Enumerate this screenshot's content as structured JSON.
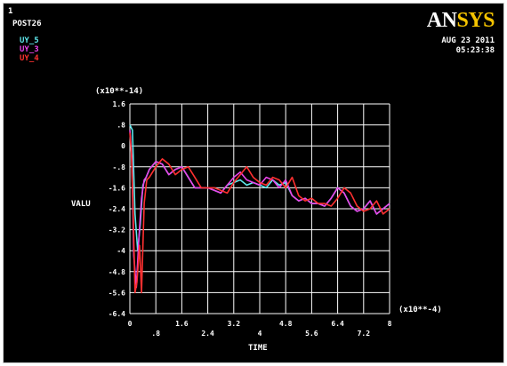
{
  "window": {
    "window_number": "1",
    "module": "POST26",
    "brand_prefix": "AN",
    "brand_suffix": "SYS",
    "date": "AUG 23 2011",
    "time": "05:23:38"
  },
  "colors": {
    "background": "#000000",
    "grid": "#ffffff",
    "axis_text": "#ffffff",
    "brand_accent": "#f5c400"
  },
  "chart_data": {
    "type": "line",
    "ylabel": "VALU",
    "xlabel": "TIME",
    "y_multiplier": "(x10**-14)",
    "x_multiplier": "(x10**-4)",
    "ylim": [
      -6.4,
      1.6
    ],
    "xlim": [
      0,
      8
    ],
    "yticks": [
      "1.6",
      ".8",
      "0",
      "-.8",
      "-1.6",
      "-2.4",
      "-3.2",
      "-4",
      "-4.8",
      "-5.6",
      "-6.4"
    ],
    "xticks_lower": [
      "0",
      "1.6",
      "3.2",
      "4.8",
      "6.4",
      "8"
    ],
    "xticks_upper": [
      ".8",
      "2.4",
      "4",
      "5.6",
      "7.2"
    ],
    "grid": true,
    "legend_position": "top-left",
    "series": [
      {
        "name": "UY_5",
        "color": "#5fe8ec",
        "x": [
          0,
          0.08,
          0.16,
          0.24,
          0.32,
          0.4,
          0.5,
          0.6,
          0.8,
          1.0,
          1.2,
          1.4,
          1.6,
          1.8,
          2.0,
          2.2,
          2.4,
          2.6,
          2.8,
          3.0,
          3.2,
          3.4,
          3.6,
          3.8,
          4.0,
          4.2,
          4.4,
          4.6,
          4.8,
          5.0,
          5.2,
          5.4,
          5.6,
          5.8,
          6.0,
          6.2,
          6.4,
          6.6,
          6.8,
          7.0,
          7.2,
          7.4,
          7.6,
          7.8,
          8.0
        ],
        "y": [
          0.8,
          0.6,
          -2.6,
          -4.0,
          -3.0,
          -1.5,
          -1.2,
          -0.9,
          -0.6,
          -0.7,
          -1.1,
          -0.9,
          -0.8,
          -1.2,
          -1.6,
          -1.6,
          -1.6,
          -1.7,
          -1.8,
          -1.5,
          -1.4,
          -1.3,
          -1.5,
          -1.4,
          -1.5,
          -1.6,
          -1.3,
          -1.5,
          -1.4,
          -1.9,
          -2.1,
          -2.0,
          -2.2,
          -2.2,
          -2.3,
          -2.0,
          -1.6,
          -1.8,
          -2.3,
          -2.5,
          -2.4,
          -2.1,
          -2.6,
          -2.4,
          -2.2
        ]
      },
      {
        "name": "UY_3",
        "color": "#ea44ea",
        "x": [
          0,
          0.06,
          0.12,
          0.2,
          0.28,
          0.36,
          0.44,
          0.5,
          0.6,
          0.8,
          1.0,
          1.2,
          1.4,
          1.6,
          1.8,
          2.0,
          2.2,
          2.4,
          2.6,
          2.8,
          3.0,
          3.2,
          3.4,
          3.6,
          3.8,
          4.0,
          4.2,
          4.4,
          4.6,
          4.8,
          5.0,
          5.2,
          5.4,
          5.6,
          5.8,
          6.0,
          6.2,
          6.4,
          6.6,
          6.8,
          7.0,
          7.2,
          7.4,
          7.6,
          7.8,
          8.0
        ],
        "y": [
          0.6,
          -0.4,
          -4.2,
          -5.4,
          -3.5,
          -2.0,
          -1.3,
          -1.2,
          -0.9,
          -0.6,
          -0.7,
          -1.1,
          -0.9,
          -0.8,
          -1.2,
          -1.6,
          -1.6,
          -1.6,
          -1.7,
          -1.8,
          -1.5,
          -1.2,
          -1.0,
          -1.3,
          -1.4,
          -1.5,
          -1.2,
          -1.3,
          -1.6,
          -1.3,
          -1.9,
          -2.1,
          -2.0,
          -2.2,
          -2.2,
          -2.3,
          -2.0,
          -1.6,
          -1.8,
          -2.3,
          -2.5,
          -2.4,
          -2.1,
          -2.6,
          -2.4,
          -2.2
        ]
      },
      {
        "name": "UY_4",
        "color": "#ff3030",
        "x": [
          0,
          0.05,
          0.1,
          0.16,
          0.22,
          0.3,
          0.36,
          0.44,
          0.52,
          0.6,
          0.8,
          1.0,
          1.2,
          1.4,
          1.6,
          1.8,
          2.0,
          2.2,
          2.4,
          2.6,
          2.8,
          3.0,
          3.2,
          3.4,
          3.6,
          3.8,
          4.0,
          4.2,
          4.4,
          4.6,
          4.8,
          5.0,
          5.2,
          5.4,
          5.6,
          5.8,
          6.0,
          6.2,
          6.4,
          6.6,
          6.8,
          7.0,
          7.2,
          7.4,
          7.6,
          7.8,
          8.0
        ],
        "y": [
          0.5,
          -0.3,
          -2.5,
          -5.6,
          -5.2,
          -3.8,
          -5.6,
          -2.2,
          -1.3,
          -1.2,
          -0.8,
          -0.5,
          -0.7,
          -1.1,
          -0.9,
          -0.8,
          -1.2,
          -1.6,
          -1.6,
          -1.6,
          -1.7,
          -1.8,
          -1.4,
          -1.1,
          -0.8,
          -1.2,
          -1.4,
          -1.5,
          -1.2,
          -1.3,
          -1.6,
          -1.2,
          -1.9,
          -2.1,
          -2.0,
          -2.2,
          -2.2,
          -2.3,
          -2.0,
          -1.6,
          -1.8,
          -2.3,
          -2.5,
          -2.4,
          -2.1,
          -2.6,
          -2.4
        ]
      }
    ]
  }
}
